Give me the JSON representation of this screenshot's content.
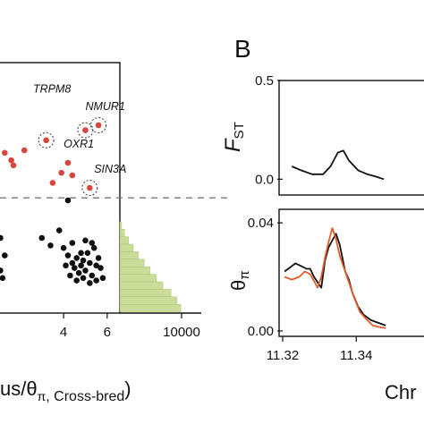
{
  "panel_b_label": "B",
  "chart_data": [
    {
      "panel": "A",
      "type": "scatter",
      "xlabel": {
        "prefix": "",
        "tail": "us/θ",
        "sub1": "π",
        "mid": ", Cross-bred",
        "close": ")"
      },
      "x_ticks": [
        "4",
        "6"
      ],
      "xlim": [
        1.0,
        6.5
      ],
      "threshold_y": 4.6,
      "ylim": [
        0,
        10
      ],
      "series": [
        {
          "color": "#d9453b",
          "points": [
            [
              1.3,
              6.4
            ],
            [
              1.6,
              6.1
            ],
            [
              2.2,
              6.5
            ],
            [
              3.2,
              6.9
            ],
            [
              3.5,
              5.2
            ],
            [
              4.2,
              6.0
            ],
            [
              4.4,
              5.5
            ],
            [
              5.0,
              7.3
            ],
            [
              5.2,
              5.0
            ],
            [
              5.6,
              7.5
            ],
            [
              1.7,
              5.9
            ],
            [
              3.9,
              5.6
            ]
          ]
        },
        {
          "color": "#111111",
          "points": [
            [
              0.8,
              2.6
            ],
            [
              1.1,
              3.0
            ],
            [
              1.3,
              2.3
            ],
            [
              1.1,
              1.7
            ],
            [
              1.2,
              1.4
            ],
            [
              3.0,
              3.0
            ],
            [
              3.4,
              2.7
            ],
            [
              3.8,
              3.3
            ],
            [
              4.0,
              2.6
            ],
            [
              4.2,
              2.3
            ],
            [
              4.4,
              2.0
            ],
            [
              4.5,
              1.8
            ],
            [
              4.6,
              2.2
            ],
            [
              4.7,
              1.6
            ],
            [
              4.8,
              1.9
            ],
            [
              4.9,
              2.1
            ],
            [
              5.0,
              1.7
            ],
            [
              5.1,
              2.4
            ],
            [
              5.2,
              2.0
            ],
            [
              5.3,
              1.5
            ],
            [
              5.4,
              2.6
            ],
            [
              5.5,
              1.9
            ],
            [
              5.6,
              2.2
            ],
            [
              5.7,
              1.8
            ],
            [
              4.6,
              1.3
            ],
            [
              4.9,
              1.4
            ],
            [
              5.2,
              1.2
            ],
            [
              5.8,
              1.4
            ],
            [
              4.4,
              2.8
            ],
            [
              5.0,
              2.9
            ],
            [
              4.3,
              1.5
            ],
            [
              4.1,
              1.9
            ],
            [
              5.3,
              2.8
            ],
            [
              4.8,
              2.4
            ],
            [
              5.5,
              1.3
            ],
            [
              4.2,
              4.5
            ]
          ]
        }
      ],
      "annotations": [
        {
          "label": "TRPM8",
          "x": 2.6,
          "y": 8.8,
          "circled": [
            3.2,
            6.9
          ]
        },
        {
          "label": "NMUR1",
          "x": 5.0,
          "y": 8.1,
          "circled": [
            5.6,
            7.5
          ]
        },
        {
          "label": "OXR1",
          "x": 4.0,
          "y": 6.6,
          "circled": [
            5.0,
            7.3
          ]
        },
        {
          "label": "SIN3A",
          "x": 5.4,
          "y": 5.6,
          "circled": [
            5.2,
            5.0
          ]
        }
      ]
    },
    {
      "panel": "A-marginal",
      "type": "bar",
      "orientation": "horizontal",
      "color": "#c9dc98",
      "x_ticks": [
        "10000"
      ],
      "xlim": [
        0,
        14000
      ],
      "bins_y": [
        3.5,
        3.2,
        2.9,
        2.6,
        2.3,
        2.0,
        1.7,
        1.4,
        1.1,
        0.8,
        0.5,
        0.2
      ],
      "values": [
        300,
        800,
        1500,
        2300,
        3200,
        4200,
        5200,
        6300,
        7400,
        8800,
        9800,
        10500
      ]
    },
    {
      "panel": "B-top",
      "type": "line",
      "ylabel": {
        "main": "F",
        "sub": "ST"
      },
      "y_ticks": [
        "0.5",
        "0.0"
      ],
      "ylim": [
        -0.08,
        0.5
      ],
      "xlim": [
        11.32,
        11.36
      ],
      "series": [
        {
          "color": "#111111",
          "x": [
            11.3225,
            11.325,
            11.328,
            11.331,
            11.333,
            11.335,
            11.3365,
            11.338,
            11.3405,
            11.343,
            11.345,
            11.3475
          ],
          "y": [
            0.065,
            0.045,
            0.025,
            0.025,
            0.065,
            0.135,
            0.145,
            0.095,
            0.045,
            0.025,
            0.015,
            0.0
          ]
        }
      ]
    },
    {
      "panel": "B-bottom",
      "type": "line",
      "ylabel": {
        "main": "θ",
        "sub": "π"
      },
      "y_ticks": [
        "0.04",
        "0.00"
      ],
      "ylim": [
        -0.002,
        0.045
      ],
      "xlim": [
        11.32,
        11.36
      ],
      "x_ticks": [
        "11.32",
        "11.34"
      ],
      "xlabel": "Chr",
      "series": [
        {
          "color": "#111111",
          "x": [
            11.3205,
            11.3215,
            11.3235,
            11.325,
            11.3265,
            11.3275,
            11.3285,
            11.3295,
            11.3305,
            11.3315,
            11.3325,
            11.3345,
            11.3355,
            11.337,
            11.338,
            11.339,
            11.3405,
            11.342,
            11.344,
            11.346,
            11.348
          ],
          "y": [
            0.022,
            0.023,
            0.025,
            0.024,
            0.023,
            0.023,
            0.02,
            0.018,
            0.016,
            0.026,
            0.031,
            0.036,
            0.032,
            0.022,
            0.019,
            0.014,
            0.009,
            0.006,
            0.004,
            0.003,
            0.002
          ]
        },
        {
          "color": "#e05a2a",
          "x": [
            11.3205,
            11.3225,
            11.3245,
            11.326,
            11.3275,
            11.3295,
            11.3305,
            11.3315,
            11.3325,
            11.3335,
            11.3345,
            11.3355,
            11.337,
            11.3385,
            11.3395,
            11.341,
            11.343,
            11.3445,
            11.346,
            11.348
          ],
          "y": [
            0.02,
            0.019,
            0.02,
            0.022,
            0.021,
            0.016,
            0.02,
            0.027,
            0.033,
            0.038,
            0.034,
            0.028,
            0.022,
            0.016,
            0.012,
            0.007,
            0.004,
            0.002,
            0.0015,
            0.001
          ]
        }
      ]
    }
  ]
}
